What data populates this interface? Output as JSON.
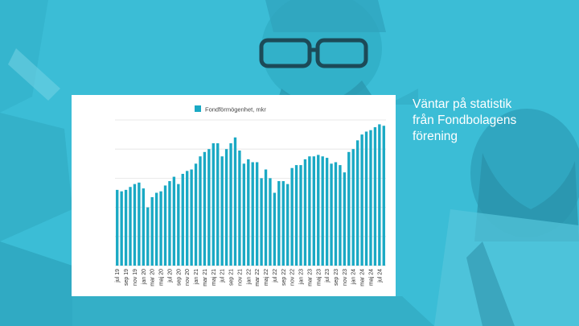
{
  "slide": {
    "headline_lines": [
      "Väntar på statistik",
      "från Fondbolagens",
      "förening"
    ]
  },
  "colors": {
    "background": "#3bbdd6",
    "bar": "#1aa9c4",
    "card": "#ffffff",
    "grid": "#e3e3e3"
  },
  "chart_data": {
    "type": "bar",
    "legend": "Fondförmögenhet, mkr",
    "legend_position": "top-center",
    "grid": true,
    "ylim": [
      0,
      100
    ],
    "tick_labels": [
      "jul 19",
      "sep 19",
      "nov 19",
      "jan 20",
      "mar 20",
      "maj 20",
      "jul 20",
      "sep 20",
      "nov 20",
      "jan 21",
      "mar 21",
      "maj 21",
      "jul 21",
      "sep 21",
      "nov 21",
      "jan 22",
      "mar 22",
      "maj 22",
      "jul 22",
      "sep 22",
      "nov 22",
      "jan 23",
      "mar 23",
      "maj 23",
      "jul 23",
      "sep 23",
      "nov 23",
      "jan 24",
      "mar 24",
      "maj 24",
      "jul 24"
    ],
    "categories": [
      "jul 19",
      "aug 19",
      "sep 19",
      "okt 19",
      "nov 19",
      "dec 19",
      "jan 20",
      "feb 20",
      "mar 20",
      "apr 20",
      "maj 20",
      "jun 20",
      "jul 20",
      "aug 20",
      "sep 20",
      "okt 20",
      "nov 20",
      "dec 20",
      "jan 21",
      "feb 21",
      "mar 21",
      "apr 21",
      "maj 21",
      "jun 21",
      "jul 21",
      "aug 21",
      "sep 21",
      "okt 21",
      "nov 21",
      "dec 21",
      "jan 22",
      "feb 22",
      "mar 22",
      "apr 22",
      "maj 22",
      "jun 22",
      "jul 22",
      "aug 22",
      "sep 22",
      "okt 22",
      "nov 22",
      "dec 22",
      "jan 23",
      "feb 23",
      "mar 23",
      "apr 23",
      "maj 23",
      "jun 23",
      "jul 23",
      "aug 23",
      "sep 23",
      "okt 23",
      "nov 23",
      "dec 23",
      "jan 24",
      "feb 24",
      "mar 24",
      "apr 24",
      "maj 24",
      "jun 24",
      "jul 24",
      "aug 24"
    ],
    "series": [
      {
        "name": "Fondförmögenhet, mkr",
        "values": [
          52,
          51,
          52,
          54,
          56,
          57,
          53,
          40,
          47,
          50,
          51,
          55,
          58,
          61,
          56,
          63,
          65,
          66,
          70,
          75,
          78,
          80,
          84,
          84,
          75,
          80,
          84,
          88,
          79,
          70,
          73,
          71,
          71,
          60,
          66,
          60,
          50,
          58,
          58,
          56,
          67,
          69,
          69,
          73,
          75,
          75,
          76,
          75,
          74,
          70,
          71,
          69,
          64,
          78,
          80,
          86,
          90,
          92,
          93,
          95,
          97,
          96
        ]
      }
    ]
  }
}
